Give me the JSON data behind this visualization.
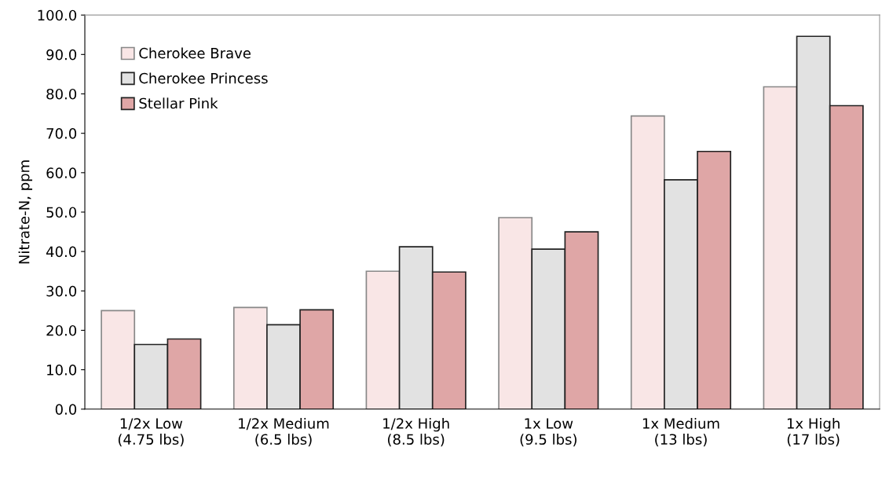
{
  "chart_data": {
    "type": "bar",
    "ylabel": "Nitrate-N, ppm",
    "categories": [
      "1/2x Low\n(4.75 lbs)",
      "1/2x Medium\n(6.5 lbs)",
      "1/2x High\n(8.5 lbs)",
      "1x Low\n(9.5 lbs)",
      "1x Medium\n(13 lbs)",
      "1x High\n(17 lbs)"
    ],
    "series": [
      {
        "name": "Cherokee Brave",
        "color": "#f9e6e6",
        "values": [
          25.0,
          25.8,
          35.0,
          48.6,
          74.4,
          81.8
        ]
      },
      {
        "name": "Cherokee Princess",
        "color": "#e2e2e2",
        "values": [
          16.4,
          21.4,
          41.2,
          40.6,
          58.2,
          94.6
        ]
      },
      {
        "name": "Stellar Pink",
        "color": "#dfa6a6",
        "values": [
          17.8,
          25.2,
          34.8,
          45.0,
          65.4,
          77.0
        ]
      }
    ],
    "ylim": [
      0,
      100
    ],
    "yticks": [
      {
        "value": 0,
        "label": "0.0"
      },
      {
        "value": 10,
        "label": "10.0"
      },
      {
        "value": 20,
        "label": "20.0"
      },
      {
        "value": 30,
        "label": "30.0"
      },
      {
        "value": 40,
        "label": "40.0"
      },
      {
        "value": 50,
        "label": "50.0"
      },
      {
        "value": 60,
        "label": "60.0"
      },
      {
        "value": 70,
        "label": "70.0"
      },
      {
        "value": 80,
        "label": "80.0"
      },
      {
        "value": 90,
        "label": "90.0"
      },
      {
        "value": 100,
        "label": "100.0"
      }
    ],
    "grid": false,
    "legend": "top left"
  }
}
